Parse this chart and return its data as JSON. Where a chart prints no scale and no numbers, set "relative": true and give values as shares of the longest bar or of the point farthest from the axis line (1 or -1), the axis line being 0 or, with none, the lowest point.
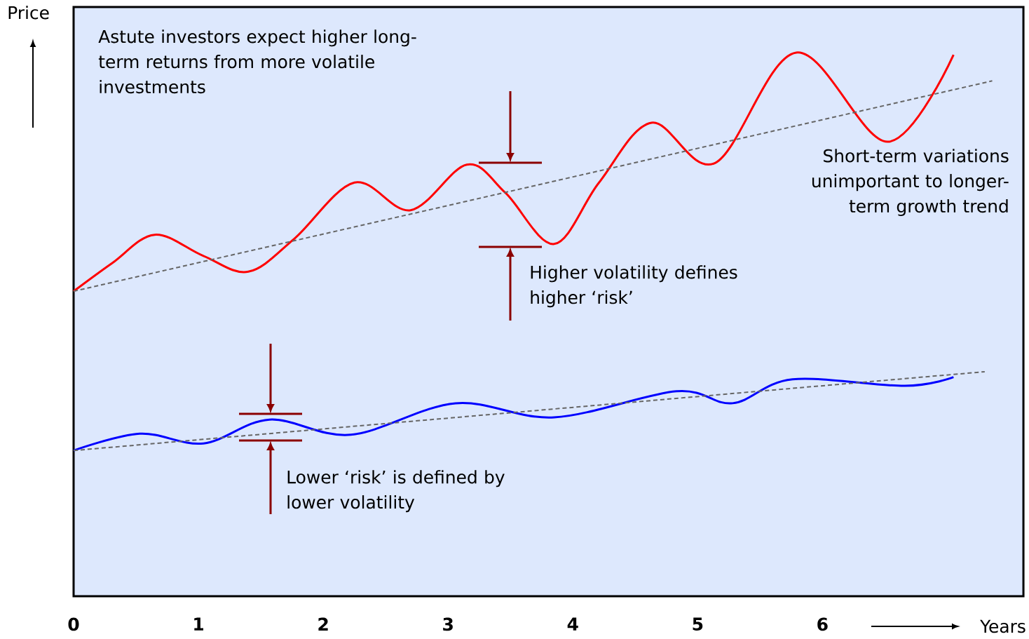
{
  "chart_data": {
    "type": "line",
    "relative": true,
    "xlabel": "Years",
    "ylabel": "Price",
    "xlim": [
      0,
      7.61
    ],
    "xticks": [
      0,
      1,
      2,
      3,
      4,
      5,
      6
    ],
    "line_style": "solid",
    "marker": "none",
    "annotations": [
      "Astute investors expect higher long-term returns from more volatile investments",
      "Short-term variations unimportant to longer-term growth trend",
      "Higher volatility defines higher ‘risk’",
      "Lower ‘risk’ is defined by lower volatility"
    ],
    "series": [
      {
        "color": "#ff0000",
        "x": [
          0,
          0.31,
          0.65,
          1.04,
          1.4,
          1.77,
          2.25,
          2.7,
          3.15,
          3.46,
          3.85,
          4.21,
          4.63,
          5.14,
          5.79,
          6.52,
          7.05
        ],
        "values": [
          0.561,
          0.613,
          0.665,
          0.626,
          0.597,
          0.658,
          0.761,
          0.71,
          0.794,
          0.742,
          0.648,
          0.761,
          0.871,
          0.797,
          1.0,
          0.836,
          0.996
        ]
      },
      {
        "color": "#0000ff",
        "x": [
          0,
          0.53,
          1.04,
          1.57,
          2.22,
          3.06,
          3.85,
          4.83,
          5.28,
          5.76,
          6.66,
          7.05
        ],
        "values": [
          0.268,
          0.299,
          0.281,
          0.325,
          0.297,
          0.355,
          0.329,
          0.377,
          0.355,
          0.399,
          0.387,
          0.403
        ]
      },
      {
        "color": "#666666",
        "line_style": "dashed",
        "x": [
          0,
          7.36
        ],
        "values": [
          0.561,
          0.948
        ]
      },
      {
        "color": "#666666",
        "line_style": "dashed",
        "x": [
          0,
          7.3
        ],
        "values": [
          0.268,
          0.413
        ]
      }
    ]
  }
}
